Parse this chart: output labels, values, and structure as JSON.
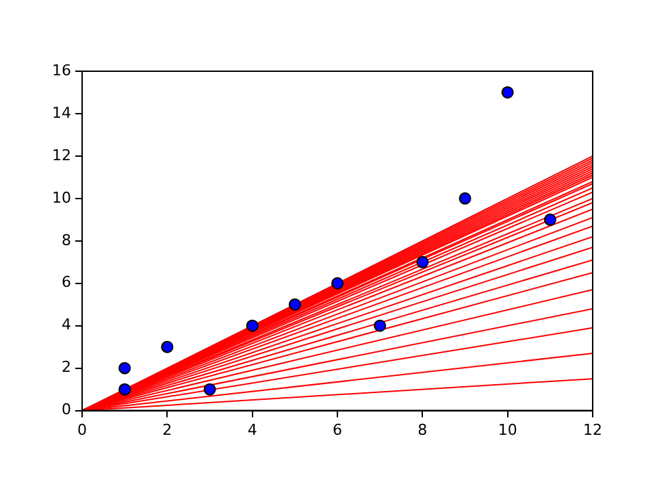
{
  "chart_data": {
    "type": "scatter",
    "xlim": [
      0,
      12
    ],
    "ylim": [
      0,
      16
    ],
    "xticks": [
      0,
      2,
      4,
      6,
      8,
      10,
      12
    ],
    "yticks": [
      0,
      2,
      4,
      6,
      8,
      10,
      12,
      14,
      16
    ],
    "grid": false,
    "legend": false,
    "marker": "none",
    "series": [
      {
        "type": "line",
        "color": "#ff0000",
        "x": [
          0,
          12
        ],
        "values": [
          0,
          1.5
        ]
      },
      {
        "type": "line",
        "color": "#ff0000",
        "x": [
          0,
          12
        ],
        "values": [
          0,
          2.7
        ]
      },
      {
        "type": "line",
        "color": "#ff0000",
        "x": [
          0,
          12
        ],
        "values": [
          0,
          3.9
        ]
      },
      {
        "type": "line",
        "color": "#ff0000",
        "x": [
          0,
          12
        ],
        "values": [
          0,
          4.8
        ]
      },
      {
        "type": "line",
        "color": "#ff0000",
        "x": [
          0,
          12
        ],
        "values": [
          0,
          5.7
        ]
      },
      {
        "type": "line",
        "color": "#ff0000",
        "x": [
          0,
          12
        ],
        "values": [
          0,
          6.5
        ]
      },
      {
        "type": "line",
        "color": "#ff0000",
        "x": [
          0,
          12
        ],
        "values": [
          0,
          7.1
        ]
      },
      {
        "type": "line",
        "color": "#ff0000",
        "x": [
          0,
          12
        ],
        "values": [
          0,
          7.7
        ]
      },
      {
        "type": "line",
        "color": "#ff0000",
        "x": [
          0,
          12
        ],
        "values": [
          0,
          8.2
        ]
      },
      {
        "type": "line",
        "color": "#ff0000",
        "x": [
          0,
          12
        ],
        "values": [
          0,
          8.7
        ]
      },
      {
        "type": "line",
        "color": "#ff0000",
        "x": [
          0,
          12
        ],
        "values": [
          0,
          9.1
        ]
      },
      {
        "type": "line",
        "color": "#ff0000",
        "x": [
          0,
          12
        ],
        "values": [
          0,
          9.5
        ]
      },
      {
        "type": "line",
        "color": "#ff0000",
        "x": [
          0,
          12
        ],
        "values": [
          0,
          9.8
        ]
      },
      {
        "type": "line",
        "color": "#ff0000",
        "x": [
          0,
          12
        ],
        "values": [
          0,
          10.0
        ]
      },
      {
        "type": "line",
        "color": "#ff0000",
        "x": [
          0,
          12
        ],
        "values": [
          0,
          10.3
        ]
      },
      {
        "type": "line",
        "color": "#ff0000",
        "x": [
          0,
          12
        ],
        "values": [
          0,
          10.5
        ]
      },
      {
        "type": "line",
        "color": "#ff0000",
        "x": [
          0,
          12
        ],
        "values": [
          0,
          10.7
        ]
      },
      {
        "type": "line",
        "color": "#ff0000",
        "x": [
          0,
          12
        ],
        "values": [
          0,
          10.8
        ]
      },
      {
        "type": "line",
        "color": "#ff0000",
        "x": [
          0,
          12
        ],
        "values": [
          0,
          11.0
        ]
      },
      {
        "type": "line",
        "color": "#ff0000",
        "x": [
          0,
          12
        ],
        "values": [
          0,
          11.1
        ]
      },
      {
        "type": "line",
        "color": "#ff0000",
        "x": [
          0,
          12
        ],
        "values": [
          0,
          11.2
        ]
      },
      {
        "type": "line",
        "color": "#ff0000",
        "x": [
          0,
          12
        ],
        "values": [
          0,
          11.3
        ]
      },
      {
        "type": "line",
        "color": "#ff0000",
        "x": [
          0,
          12
        ],
        "values": [
          0,
          11.4
        ]
      },
      {
        "type": "line",
        "color": "#ff0000",
        "x": [
          0,
          12
        ],
        "values": [
          0,
          11.5
        ]
      },
      {
        "type": "line",
        "color": "#ff0000",
        "x": [
          0,
          12
        ],
        "values": [
          0,
          11.6
        ]
      },
      {
        "type": "line",
        "color": "#ff0000",
        "x": [
          0,
          12
        ],
        "values": [
          0,
          11.7
        ]
      },
      {
        "type": "line",
        "color": "#ff0000",
        "x": [
          0,
          12
        ],
        "values": [
          0,
          11.8
        ]
      },
      {
        "type": "line",
        "color": "#ff0000",
        "x": [
          0,
          12
        ],
        "values": [
          0,
          11.9
        ]
      },
      {
        "type": "line",
        "color": "#ff0000",
        "x": [
          0,
          12
        ],
        "values": [
          0,
          12.0
        ]
      },
      {
        "marker": "circle",
        "color": "#0000ff",
        "x": [
          1,
          1,
          2,
          3,
          4,
          5,
          6,
          7,
          8,
          9,
          10,
          11
        ],
        "values": [
          2,
          1,
          3,
          1,
          4,
          5,
          6,
          4,
          7,
          10,
          15,
          9
        ]
      }
    ]
  }
}
